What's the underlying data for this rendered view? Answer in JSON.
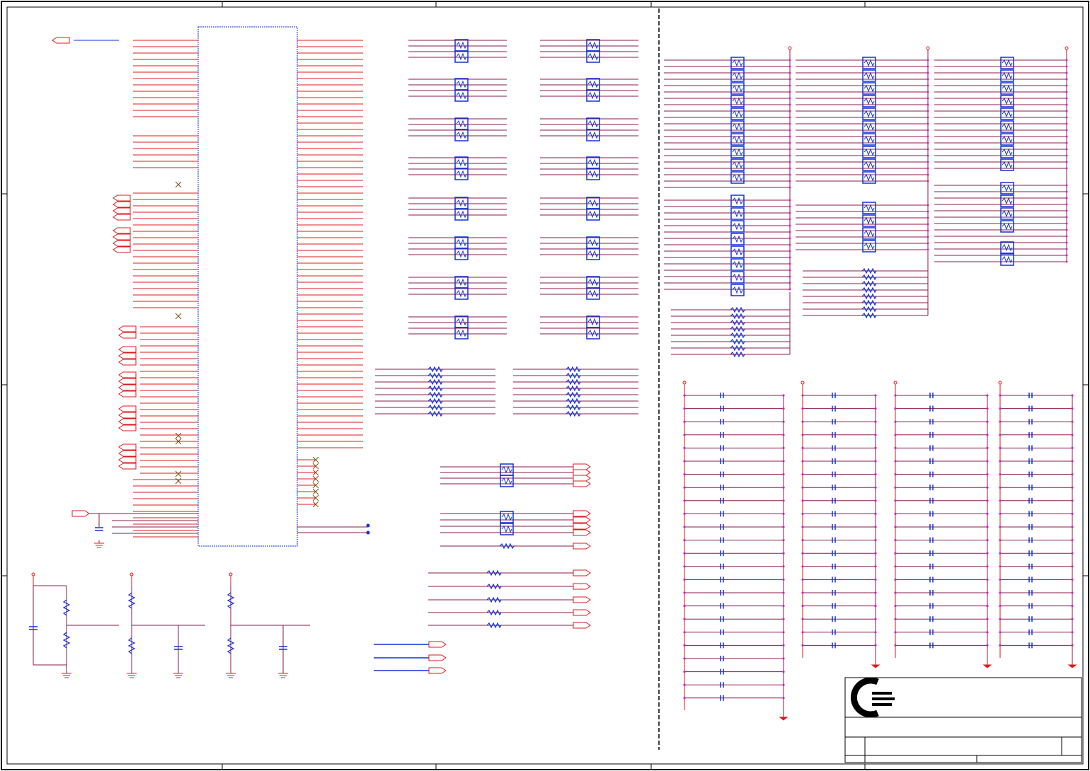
{
  "sheet": {
    "description_visible_text": "",
    "title_block": {
      "logo": "company-logo",
      "title_text": "",
      "sheet_label": ""
    }
  },
  "colors": {
    "wire_red": "#e01818",
    "wire_net": "#8b1a4a",
    "component_blue": "#1030d8",
    "border_black": "#000000",
    "magenta_dot": "#d020d0",
    "noconnect_brown": "#8a4a10"
  }
}
